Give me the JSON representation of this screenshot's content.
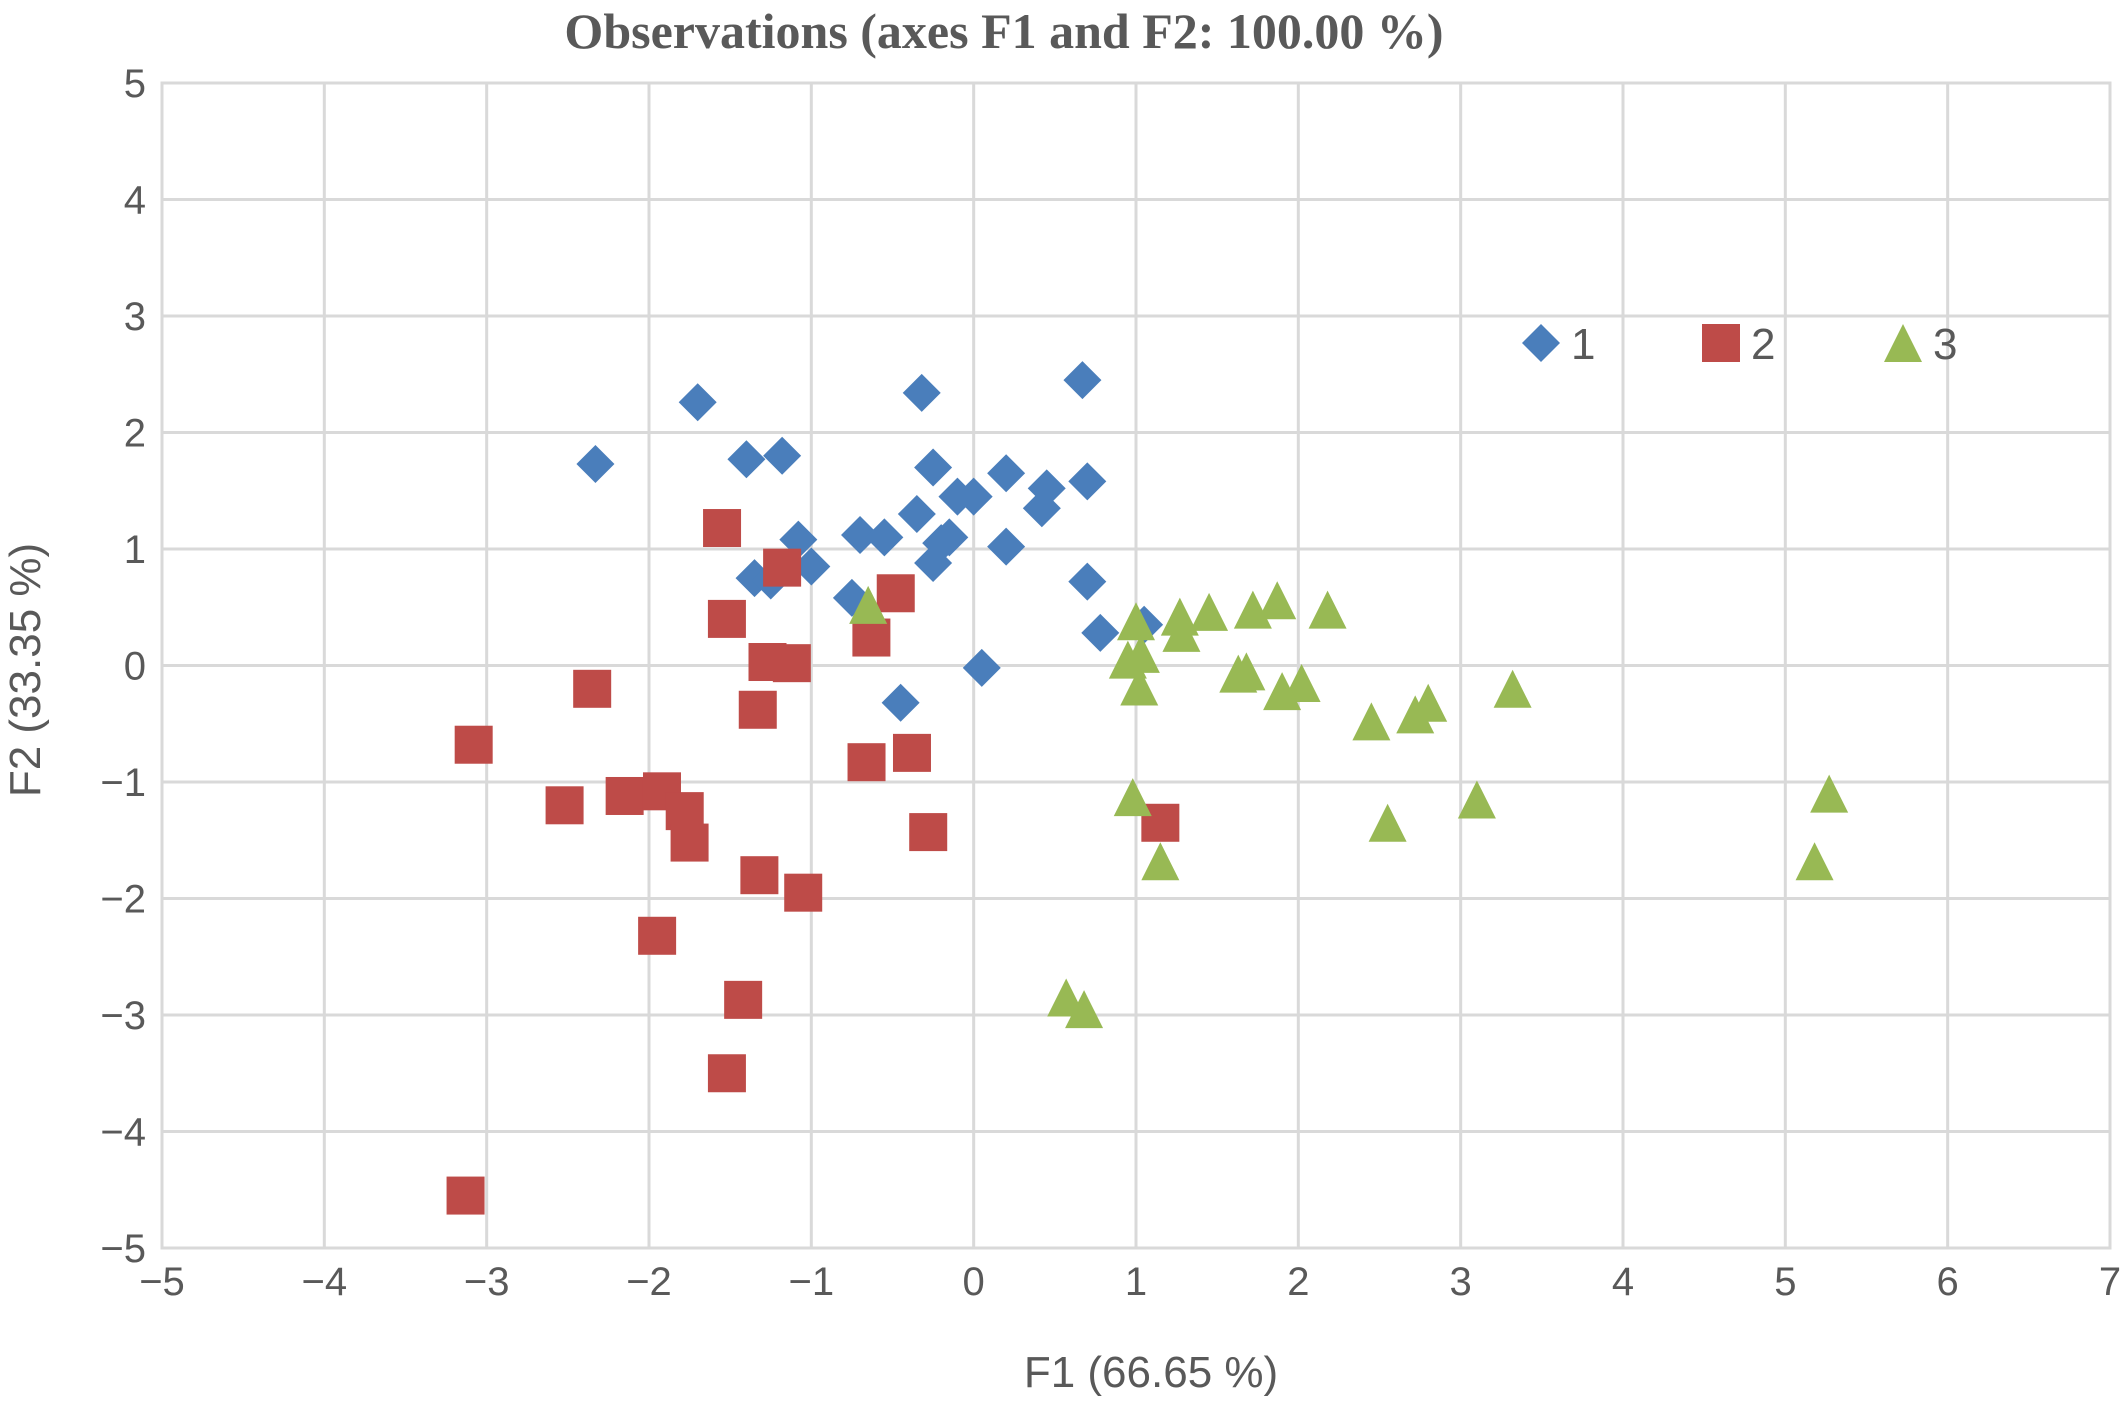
{
  "chart_data": {
    "type": "scatter",
    "title": "Observations (axes F1 and F2: 100.00 %)",
    "xlabel": "F1 (66.65 %)",
    "ylabel": "F2 (33.35 %)",
    "xlim": [
      -5,
      7
    ],
    "ylim": [
      -5,
      5
    ],
    "x_ticks": [
      -5,
      -4,
      -3,
      -2,
      -1,
      0,
      1,
      2,
      3,
      4,
      5,
      6,
      7
    ],
    "y_ticks": [
      -5,
      -4,
      -3,
      -2,
      -1,
      0,
      1,
      2,
      3,
      4,
      5
    ],
    "x_tick_labels": [
      "−5",
      "−4",
      "−3",
      "−2",
      "−1",
      "0",
      "1",
      "2",
      "3",
      "4",
      "5",
      "6",
      "7"
    ],
    "y_tick_labels": [
      "−5",
      "−4",
      "−3",
      "−2",
      "−1",
      "0",
      "1",
      "2",
      "3",
      "4",
      "5"
    ],
    "grid": true,
    "legend_position": "top-right",
    "series": [
      {
        "name": "1",
        "marker": "diamond",
        "color": "#4a7ebb",
        "points": [
          [
            -2.33,
            1.73
          ],
          [
            -1.7,
            2.26
          ],
          [
            -1.4,
            1.77
          ],
          [
            -1.18,
            1.8
          ],
          [
            -1.35,
            0.75
          ],
          [
            -1.25,
            0.73
          ],
          [
            -1.08,
            1.08
          ],
          [
            -1.0,
            0.85
          ],
          [
            -0.75,
            0.58
          ],
          [
            -0.7,
            1.12
          ],
          [
            -0.55,
            1.1
          ],
          [
            -0.35,
            1.3
          ],
          [
            -0.32,
            2.34
          ],
          [
            -0.25,
            1.7
          ],
          [
            -0.25,
            0.88
          ],
          [
            -0.2,
            1.05
          ],
          [
            -0.15,
            1.1
          ],
          [
            -0.1,
            1.45
          ],
          [
            0.0,
            1.45
          ],
          [
            0.2,
            1.65
          ],
          [
            0.2,
            1.02
          ],
          [
            0.42,
            1.35
          ],
          [
            0.45,
            1.52
          ],
          [
            0.67,
            2.45
          ],
          [
            0.7,
            1.58
          ],
          [
            0.7,
            0.72
          ],
          [
            0.78,
            0.28
          ],
          [
            1.05,
            0.35
          ],
          [
            0.05,
            -0.02
          ],
          [
            -0.45,
            -0.32
          ]
        ]
      },
      {
        "name": "2",
        "marker": "square",
        "color": "#be4b48",
        "points": [
          [
            -1.55,
            1.18
          ],
          [
            -1.18,
            0.84
          ],
          [
            -0.48,
            0.62
          ],
          [
            -1.52,
            0.4
          ],
          [
            -0.63,
            0.24
          ],
          [
            -1.27,
            0.03
          ],
          [
            -1.12,
            0.02
          ],
          [
            -2.35,
            -0.2
          ],
          [
            -1.33,
            -0.38
          ],
          [
            -3.08,
            -0.68
          ],
          [
            -0.38,
            -0.75
          ],
          [
            -0.66,
            -0.83
          ],
          [
            -2.52,
            -1.2
          ],
          [
            -2.15,
            -1.12
          ],
          [
            -1.92,
            -1.08
          ],
          [
            -1.78,
            -1.25
          ],
          [
            -1.75,
            -1.52
          ],
          [
            -0.28,
            -1.43
          ],
          [
            1.15,
            -1.35
          ],
          [
            -1.32,
            -1.8
          ],
          [
            -1.05,
            -1.95
          ],
          [
            -1.95,
            -2.32
          ],
          [
            -1.42,
            -2.87
          ],
          [
            -1.52,
            -3.5
          ],
          [
            -3.13,
            -4.55
          ]
        ]
      },
      {
        "name": "3",
        "marker": "triangle",
        "color": "#98b954",
        "points": [
          [
            -0.65,
            0.52
          ],
          [
            1.0,
            0.38
          ],
          [
            1.27,
            0.42
          ],
          [
            1.45,
            0.46
          ],
          [
            1.72,
            0.48
          ],
          [
            1.87,
            0.56
          ],
          [
            2.18,
            0.48
          ],
          [
            1.28,
            0.28
          ],
          [
            1.03,
            0.1
          ],
          [
            0.95,
            0.05
          ],
          [
            1.63,
            -0.07
          ],
          [
            1.68,
            -0.05
          ],
          [
            2.02,
            -0.15
          ],
          [
            1.9,
            -0.22
          ],
          [
            1.02,
            -0.18
          ],
          [
            3.32,
            -0.2
          ],
          [
            2.45,
            -0.48
          ],
          [
            2.72,
            -0.42
          ],
          [
            2.8,
            -0.32
          ],
          [
            0.98,
            -1.13
          ],
          [
            3.1,
            -1.15
          ],
          [
            2.55,
            -1.35
          ],
          [
            5.27,
            -1.1
          ],
          [
            5.18,
            -1.68
          ],
          [
            1.15,
            -1.68
          ],
          [
            0.57,
            -2.85
          ],
          [
            0.68,
            -2.95
          ]
        ]
      }
    ]
  }
}
